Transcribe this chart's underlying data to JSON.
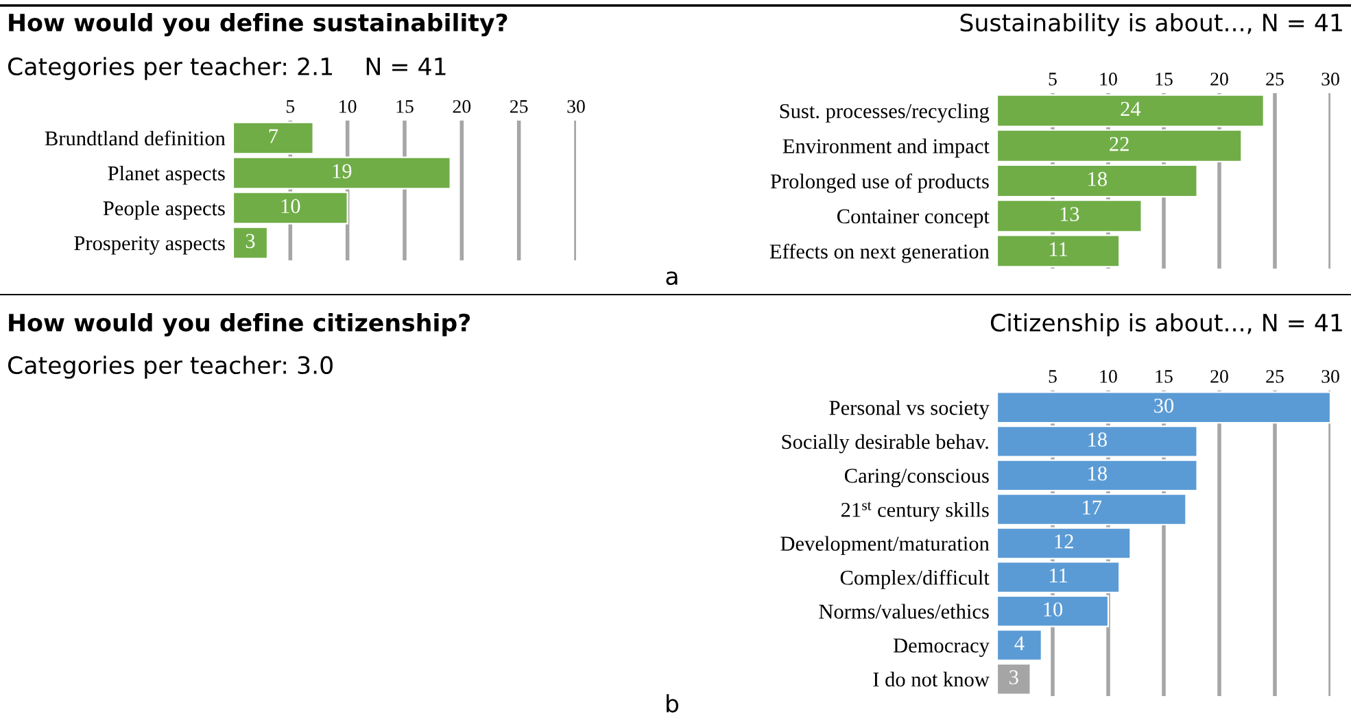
{
  "chart_data": [
    {
      "type": "bar",
      "orientation": "horizontal",
      "title": "How would you define sustainability?",
      "subtitle": "Categories per teacher: 2.1    N = 41",
      "categories": [
        "Brundtland definition",
        "Planet aspects",
        "People aspects",
        "Prosperity aspects"
      ],
      "values": [
        7,
        19,
        10,
        3
      ],
      "colors": [
        "#70ad47",
        "#70ad47",
        "#70ad47",
        "#70ad47"
      ],
      "xlim": [
        0,
        30
      ],
      "xticks": [
        5,
        10,
        15,
        20,
        25,
        30
      ],
      "grid": "x",
      "data_labels": true
    },
    {
      "type": "bar",
      "orientation": "horizontal",
      "title": "Sustainability is about..., N = 41",
      "annotations": [
        "a"
      ],
      "categories": [
        "Sust. processes/recycling",
        "Environment and impact",
        "Prolonged use of products",
        "Container concept",
        "Effects on next generation"
      ],
      "values": [
        24,
        22,
        18,
        13,
        11
      ],
      "colors": [
        "#70ad47",
        "#70ad47",
        "#70ad47",
        "#70ad47",
        "#70ad47"
      ],
      "xlim": [
        0,
        30
      ],
      "xticks": [
        5,
        10,
        15,
        20,
        25,
        30
      ],
      "grid": "x",
      "data_labels": true
    },
    {
      "type": "bar",
      "orientation": "horizontal",
      "title": "Citizenship is about..., N = 41",
      "annotations": [
        "How would you define citizenship?",
        "Categories per teacher: 3.0",
        "b"
      ],
      "categories": [
        "Personal vs society",
        "Socially desirable behav.",
        "Caring/conscious",
        "21$^{st}$ century skills",
        "Development/maturation",
        "Complex/difficult",
        "Norms/values/ethics",
        "Democracy",
        "I do not know"
      ],
      "values": [
        30,
        18,
        18,
        17,
        12,
        11,
        10,
        4,
        3
      ],
      "colors": [
        "#5b9bd5",
        "#5b9bd5",
        "#5b9bd5",
        "#5b9bd5",
        "#5b9bd5",
        "#5b9bd5",
        "#5b9bd5",
        "#5b9bd5",
        "#a5a5a5"
      ],
      "xlim": [
        0,
        30
      ],
      "xticks": [
        5,
        10,
        15,
        20,
        25,
        30
      ],
      "grid": "x",
      "data_labels": true
    }
  ]
}
